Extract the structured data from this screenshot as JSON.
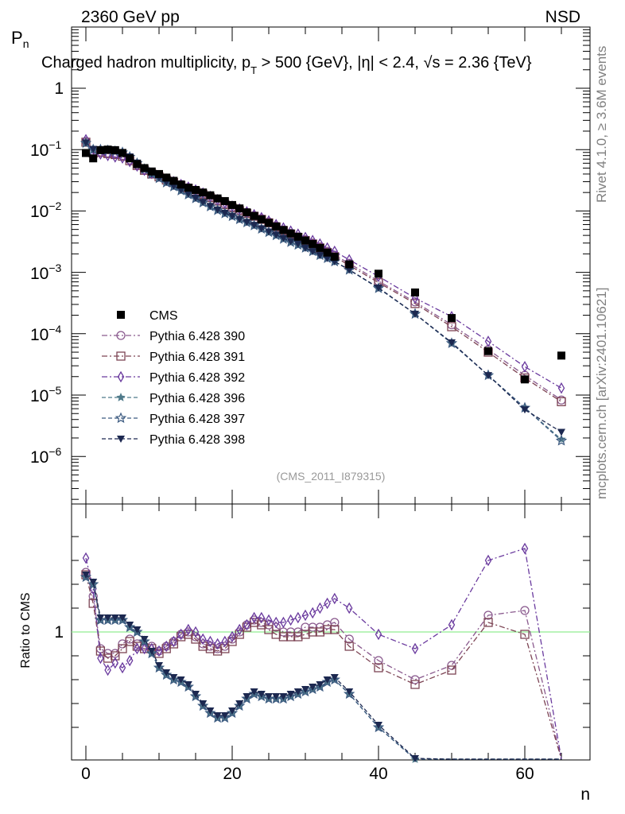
{
  "header": {
    "left": "2360 GeV pp",
    "right": "NSD",
    "title": "Charged hadron multiplicity, p",
    "title_sub": "T",
    "title_rest": " > 500 {GeV}, |η| < 2.4, √s = 2.36 {TeV}"
  },
  "side_text": {
    "rivet": "Rivet 4.1.0, ≥ 3.6M events",
    "mcplots": "mcplots.cern.ch [arXiv:2401.10621]"
  },
  "analysis_tag": "(CMS_2011_I879315)",
  "colors": {
    "data": "#000000",
    "p390": "#8a5a8e",
    "p391": "#7d4454",
    "p392": "#6a3a9e",
    "p396": "#4f7a8a",
    "p397": "#3c5a80",
    "p398": "#1c2850",
    "ratio_ref": "#90ee90"
  },
  "chart_data": [
    {
      "type": "scatter",
      "title": "Charged hadron multiplicity",
      "ylabel": "P",
      "ylabel_sub": "n",
      "xlabel": "n",
      "yscale": "log",
      "xlim": [
        -2,
        69
      ],
      "ylim": [
        1.5e-07,
        5
      ],
      "ytick_labels": {
        "y1": "1",
        "y0": "10",
        "y0e": "−1",
        "y1e": "−2",
        "y2e": "−3",
        "y3e": "−4",
        "y4e": "−5",
        "y5e": "−6"
      },
      "xticks": [
        0,
        20,
        40,
        60
      ],
      "legend": [
        {
          "key": "data",
          "label": "CMS",
          "marker": "square"
        },
        {
          "key": "p390",
          "label": "Pythia 6.428 390",
          "marker": "circle-open",
          "dash": "dashdot"
        },
        {
          "key": "p391",
          "label": "Pythia 6.428 391",
          "marker": "square-open",
          "dash": "dashdot"
        },
        {
          "key": "p392",
          "label": "Pythia 6.428 392",
          "marker": "diamond-open",
          "dash": "dashdot"
        },
        {
          "key": "p396",
          "label": "Pythia 6.428 396",
          "marker": "star",
          "dash": "dash"
        },
        {
          "key": "p397",
          "label": "Pythia 6.428 397",
          "marker": "star-open",
          "dash": "dash"
        },
        {
          "key": "p398",
          "label": "Pythia 6.428 398",
          "marker": "triangle-down",
          "dash": "dash"
        }
      ],
      "x": [
        0,
        1,
        2,
        3,
        4,
        5,
        6,
        7,
        8,
        9,
        10,
        11,
        12,
        13,
        14,
        15,
        16,
        17,
        18,
        19,
        20,
        21,
        22,
        23,
        24,
        25,
        26,
        27,
        28,
        29,
        30,
        31,
        32,
        33,
        34,
        36,
        40,
        45,
        50,
        55,
        60,
        65
      ],
      "data": [
        0.088,
        0.072,
        0.098,
        0.1,
        0.098,
        0.088,
        0.072,
        0.058,
        0.05,
        0.044,
        0.04,
        0.035,
        0.031,
        0.027,
        0.024,
        0.022,
        0.02,
        0.018,
        0.016,
        0.0145,
        0.0125,
        0.011,
        0.0095,
        0.0083,
        0.0073,
        0.0064,
        0.0056,
        0.0049,
        0.0043,
        0.0038,
        0.0033,
        0.0029,
        0.0025,
        0.0021,
        0.0018,
        0.00135,
        0.00095,
        0.00047,
        0.00018,
        5.2e-05,
        1.8e-05,
        4.4e-05
      ],
      "series": {
        "p390": [
          0.135,
          0.09,
          0.092,
          0.088,
          0.085,
          0.08,
          0.068,
          0.056,
          0.047,
          0.041,
          0.037,
          0.033,
          0.03,
          0.027,
          0.024,
          0.0215,
          0.019,
          0.0168,
          0.0148,
          0.013,
          0.0115,
          0.0103,
          0.0093,
          0.0084,
          0.0075,
          0.0066,
          0.0057,
          0.0049,
          0.0043,
          0.0038,
          0.0034,
          0.003,
          0.0026,
          0.0022,
          0.0019,
          0.0014,
          0.00072,
          0.00033,
          0.00014,
          5.5e-05,
          2.1e-05,
          8.3e-06
        ],
        "p391": [
          0.132,
          0.088,
          0.09,
          0.086,
          0.083,
          0.078,
          0.066,
          0.055,
          0.046,
          0.04,
          0.036,
          0.032,
          0.029,
          0.026,
          0.0235,
          0.021,
          0.0187,
          0.0165,
          0.0145,
          0.0127,
          0.0113,
          0.0101,
          0.0091,
          0.0082,
          0.0073,
          0.0064,
          0.0055,
          0.0048,
          0.0042,
          0.0037,
          0.0033,
          0.0029,
          0.0025,
          0.0021,
          0.0018,
          0.0013,
          0.00068,
          0.00031,
          0.00013,
          5e-05,
          1.9e-05,
          7.8e-06
        ],
        "p392": [
          0.145,
          0.085,
          0.085,
          0.08,
          0.076,
          0.073,
          0.064,
          0.054,
          0.046,
          0.041,
          0.037,
          0.033,
          0.03,
          0.027,
          0.0245,
          0.022,
          0.0196,
          0.0173,
          0.0153,
          0.0135,
          0.012,
          0.0108,
          0.0097,
          0.0087,
          0.0078,
          0.0069,
          0.006,
          0.0053,
          0.0047,
          0.0042,
          0.0037,
          0.0033,
          0.0029,
          0.0025,
          0.0022,
          0.0016,
          0.00086,
          0.00038,
          0.00019,
          7.5e-05,
          2.9e-05,
          1.3e-05
        ],
        "p396": [
          0.128,
          0.1,
          0.1,
          0.097,
          0.094,
          0.09,
          0.076,
          0.06,
          0.048,
          0.04,
          0.034,
          0.029,
          0.025,
          0.0215,
          0.0185,
          0.016,
          0.0137,
          0.0118,
          0.0103,
          0.0091,
          0.0082,
          0.0073,
          0.0065,
          0.0058,
          0.0051,
          0.0045,
          0.004,
          0.0035,
          0.0031,
          0.0028,
          0.0025,
          0.0022,
          0.0019,
          0.0017,
          0.0015,
          0.0011,
          0.00055,
          0.00021,
          7e-05,
          2.1e-05,
          6.2e-06,
          1.9e-06
        ],
        "p397": [
          0.128,
          0.1,
          0.1,
          0.097,
          0.094,
          0.09,
          0.076,
          0.06,
          0.048,
          0.04,
          0.034,
          0.029,
          0.025,
          0.0215,
          0.0185,
          0.016,
          0.0137,
          0.0118,
          0.0103,
          0.0091,
          0.0082,
          0.0073,
          0.0065,
          0.0058,
          0.0051,
          0.0045,
          0.004,
          0.0035,
          0.0031,
          0.0028,
          0.0025,
          0.0022,
          0.0019,
          0.0017,
          0.0015,
          0.0011,
          0.00055,
          0.00021,
          7e-05,
          2.1e-05,
          6.2e-06,
          1.8e-06
        ],
        "p398": [
          0.13,
          0.102,
          0.101,
          0.098,
          0.095,
          0.091,
          0.077,
          0.061,
          0.049,
          0.041,
          0.035,
          0.0295,
          0.0255,
          0.022,
          0.019,
          0.0163,
          0.014,
          0.012,
          0.0105,
          0.0093,
          0.0083,
          0.0074,
          0.0066,
          0.0059,
          0.0052,
          0.0046,
          0.0041,
          0.0036,
          0.0032,
          0.0029,
          0.0025,
          0.0022,
          0.0019,
          0.0017,
          0.0015,
          0.0011,
          0.00056,
          0.00021,
          7.2e-05,
          2.1e-05,
          5.8e-06,
          2.5e-06
        ]
      }
    },
    {
      "type": "line",
      "title": "Ratio to CMS",
      "ylabel": "Ratio to CMS",
      "xlabel": "n",
      "xlim": [
        -2,
        69
      ],
      "ylim": [
        0.5,
        1.5
      ],
      "ytick_label": "1",
      "xtick_labels": [
        "0",
        "20",
        "40",
        "60"
      ],
      "reference": 1.0,
      "x": [
        0,
        1,
        2,
        3,
        4,
        5,
        6,
        7,
        8,
        9,
        10,
        11,
        12,
        13,
        14,
        15,
        16,
        17,
        18,
        19,
        20,
        21,
        22,
        23,
        24,
        25,
        26,
        27,
        28,
        29,
        30,
        31,
        32,
        33,
        34,
        36,
        40,
        45,
        50,
        55,
        60,
        65
      ],
      "series": {
        "p390": [
          1.25,
          1.15,
          0.93,
          0.91,
          0.91,
          0.95,
          0.97,
          0.95,
          0.94,
          0.94,
          0.92,
          0.94,
          0.96,
          0.99,
          1.0,
          0.98,
          0.95,
          0.94,
          0.93,
          0.94,
          0.97,
          1.0,
          1.03,
          1.05,
          1.04,
          1.03,
          1.02,
          1.0,
          1.0,
          1.0,
          1.02,
          1.02,
          1.02,
          1.03,
          1.04,
          0.97,
          0.88,
          0.8,
          0.86,
          1.07,
          1.09,
          0.2
        ],
        "p391": [
          1.24,
          1.12,
          0.92,
          0.89,
          0.9,
          0.93,
          0.96,
          0.94,
          0.93,
          0.93,
          0.91,
          0.93,
          0.95,
          0.98,
          0.99,
          0.97,
          0.94,
          0.93,
          0.92,
          0.93,
          0.96,
          0.99,
          1.02,
          1.04,
          1.03,
          1.01,
          0.99,
          0.98,
          0.98,
          0.98,
          0.99,
          1.0,
          1.0,
          1.01,
          1.01,
          0.94,
          0.85,
          0.78,
          0.84,
          1.04,
          0.99,
          0.2
        ],
        "p392": [
          1.31,
          1.18,
          0.89,
          0.84,
          0.87,
          0.85,
          0.88,
          0.93,
          0.93,
          0.93,
          0.92,
          0.94,
          0.96,
          0.99,
          1.01,
          1.0,
          0.97,
          0.96,
          0.95,
          0.96,
          0.98,
          1.01,
          1.03,
          1.06,
          1.06,
          1.05,
          1.04,
          1.04,
          1.05,
          1.06,
          1.07,
          1.08,
          1.1,
          1.12,
          1.14,
          1.1,
          0.99,
          0.93,
          1.03,
          1.3,
          1.35,
          0.2
        ],
        "p396": [
          1.23,
          1.2,
          1.05,
          1.05,
          1.05,
          1.05,
          1.02,
          1.0,
          0.96,
          0.91,
          0.85,
          0.82,
          0.8,
          0.79,
          0.77,
          0.73,
          0.69,
          0.66,
          0.64,
          0.64,
          0.66,
          0.69,
          0.72,
          0.74,
          0.73,
          0.72,
          0.72,
          0.72,
          0.73,
          0.74,
          0.75,
          0.76,
          0.77,
          0.79,
          0.8,
          0.74,
          0.6,
          0.46,
          0.4,
          0.4,
          0.35,
          0.2
        ],
        "p397": [
          1.23,
          1.2,
          1.05,
          1.05,
          1.05,
          1.05,
          1.02,
          1.0,
          0.96,
          0.91,
          0.85,
          0.82,
          0.8,
          0.79,
          0.77,
          0.73,
          0.69,
          0.66,
          0.64,
          0.64,
          0.66,
          0.69,
          0.72,
          0.74,
          0.73,
          0.72,
          0.72,
          0.72,
          0.73,
          0.74,
          0.75,
          0.76,
          0.77,
          0.79,
          0.8,
          0.74,
          0.6,
          0.45,
          0.39,
          0.38,
          0.34,
          0.2
        ],
        "p398": [
          1.24,
          1.21,
          1.06,
          1.06,
          1.06,
          1.06,
          1.03,
          1.01,
          0.97,
          0.92,
          0.86,
          0.83,
          0.81,
          0.8,
          0.78,
          0.74,
          0.7,
          0.67,
          0.65,
          0.65,
          0.67,
          0.7,
          0.73,
          0.75,
          0.74,
          0.73,
          0.73,
          0.73,
          0.74,
          0.75,
          0.76,
          0.77,
          0.78,
          0.8,
          0.81,
          0.75,
          0.61,
          0.47,
          0.4,
          0.4,
          0.35,
          0.2
        ]
      }
    }
  ]
}
